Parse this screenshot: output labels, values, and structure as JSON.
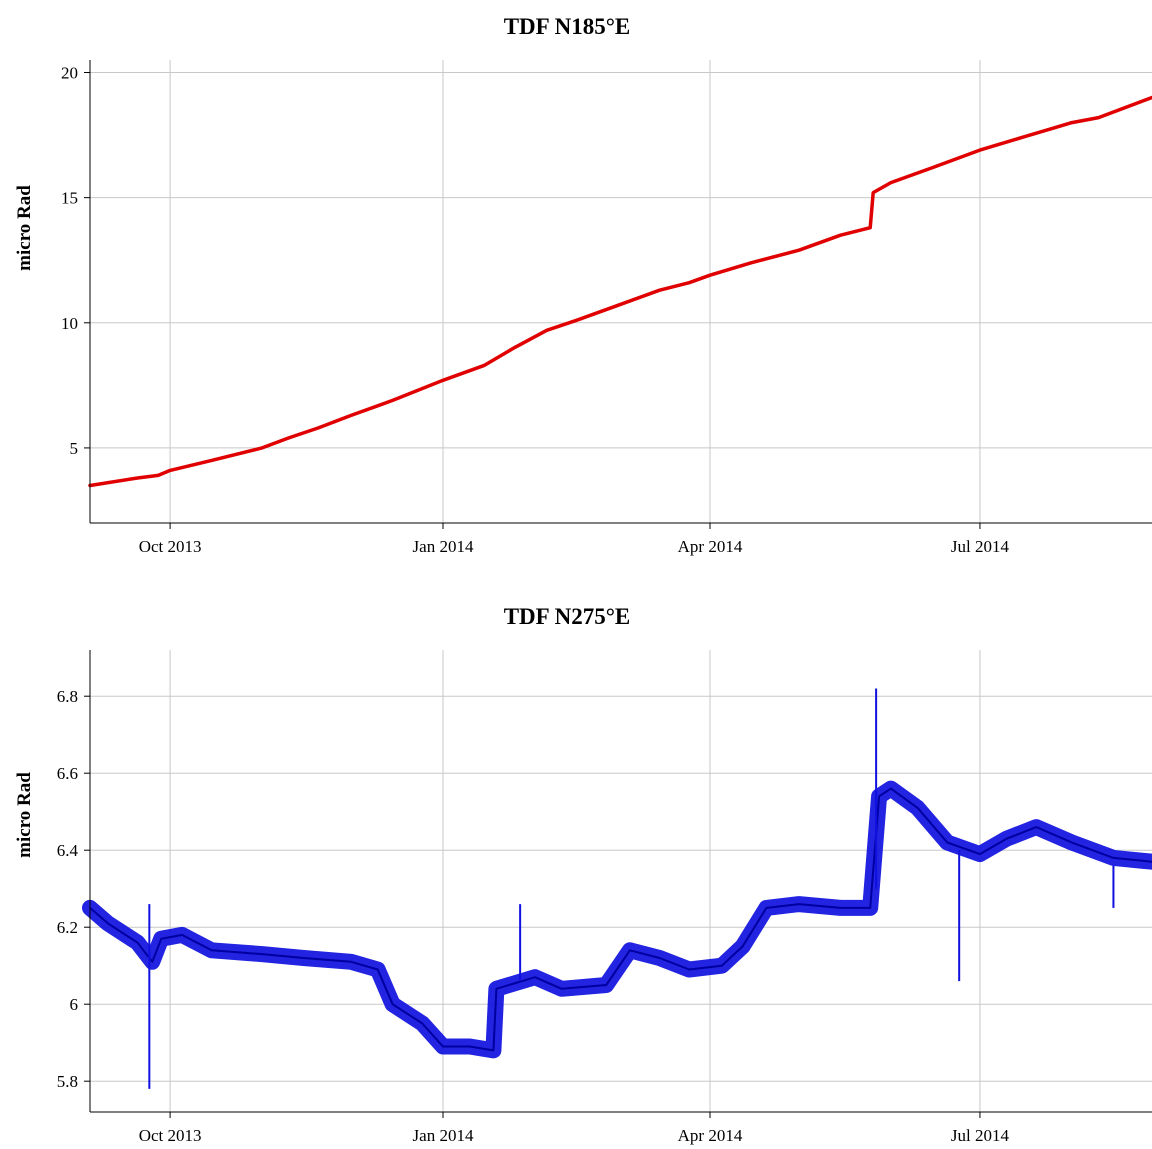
{
  "chart_data": [
    {
      "type": "line",
      "title": "TDF N185°E",
      "ylabel": "micro Rad",
      "xlabel": "",
      "x_ticks": [
        "Oct 2013",
        "Jan 2014",
        "Apr 2014",
        "Jul 2014"
      ],
      "y_ticks": [
        "5",
        "10",
        "15",
        "20"
      ],
      "ylim": [
        2,
        20.5
      ],
      "xlim": [
        "2013-09-04",
        "2014-08-28"
      ],
      "grid": true,
      "color": "#e00000",
      "series": [
        {
          "x": [
            "2013-09-04",
            "2013-09-20",
            "2013-09-27",
            "2013-10-01",
            "2013-10-15",
            "2013-11-01",
            "2013-11-10",
            "2013-11-20",
            "2013-12-01",
            "2013-12-15",
            "2014-01-01",
            "2014-01-15",
            "2014-01-25",
            "2014-02-05",
            "2014-02-15",
            "2014-03-01",
            "2014-03-15",
            "2014-03-25",
            "2014-04-01",
            "2014-04-15",
            "2014-05-01",
            "2014-05-15",
            "2014-05-25",
            "2014-05-26",
            "2014-06-01",
            "2014-06-15",
            "2014-07-01",
            "2014-07-15",
            "2014-08-01",
            "2014-08-10",
            "2014-08-28"
          ],
          "y": [
            3.5,
            3.8,
            3.9,
            4.1,
            4.5,
            5.0,
            5.4,
            5.8,
            6.3,
            6.9,
            7.7,
            8.3,
            9.0,
            9.7,
            10.1,
            10.7,
            11.3,
            11.6,
            11.9,
            12.4,
            12.9,
            13.5,
            13.8,
            15.2,
            15.6,
            16.2,
            16.9,
            17.4,
            18.0,
            18.2,
            19.0
          ]
        }
      ]
    },
    {
      "type": "line",
      "title": "TDF N275°E",
      "ylabel": "micro Rad",
      "xlabel": "",
      "x_ticks": [
        "Oct 2013",
        "Jan 2014",
        "Apr 2014",
        "Jul 2014"
      ],
      "y_ticks": [
        "5.8",
        "6",
        "6.2",
        "6.4",
        "6.6",
        "6.8"
      ],
      "ylim": [
        5.72,
        6.92
      ],
      "xlim": [
        "2013-09-04",
        "2014-08-28"
      ],
      "grid": true,
      "color": "#1010e0",
      "series": [
        {
          "x": [
            "2013-09-04",
            "2013-09-10",
            "2013-09-20",
            "2013-09-25",
            "2013-09-28",
            "2013-10-05",
            "2013-10-15",
            "2013-11-01",
            "2013-11-15",
            "2013-12-01",
            "2013-12-10",
            "2013-12-15",
            "2013-12-25",
            "2014-01-01",
            "2014-01-10",
            "2014-01-18",
            "2014-01-19",
            "2014-02-01",
            "2014-02-10",
            "2014-02-25",
            "2014-03-05",
            "2014-03-15",
            "2014-03-25",
            "2014-04-05",
            "2014-04-12",
            "2014-04-20",
            "2014-05-01",
            "2014-05-15",
            "2014-05-25",
            "2014-05-28",
            "2014-06-01",
            "2014-06-10",
            "2014-06-20",
            "2014-07-01",
            "2014-07-10",
            "2014-07-20",
            "2014-08-01",
            "2014-08-15",
            "2014-08-28"
          ],
          "y": [
            6.25,
            6.21,
            6.16,
            6.11,
            6.17,
            6.18,
            6.14,
            6.13,
            6.12,
            6.11,
            6.09,
            6.0,
            5.95,
            5.89,
            5.89,
            5.88,
            6.04,
            6.07,
            6.04,
            6.05,
            6.14,
            6.12,
            6.09,
            6.1,
            6.15,
            6.25,
            6.26,
            6.25,
            6.25,
            6.54,
            6.56,
            6.51,
            6.42,
            6.39,
            6.43,
            6.46,
            6.42,
            6.38,
            6.37
          ]
        }
      ],
      "spikes": [
        {
          "x": "2013-09-24",
          "from": 6.12,
          "to": 5.78
        },
        {
          "x": "2013-09-24",
          "from": 6.12,
          "to": 6.26
        },
        {
          "x": "2014-01-27",
          "from": 6.06,
          "to": 6.26
        },
        {
          "x": "2014-05-27",
          "from": 6.3,
          "to": 6.82
        },
        {
          "x": "2014-06-24",
          "from": 6.4,
          "to": 6.06
        },
        {
          "x": "2014-08-15",
          "from": 6.36,
          "to": 6.25
        }
      ]
    }
  ]
}
